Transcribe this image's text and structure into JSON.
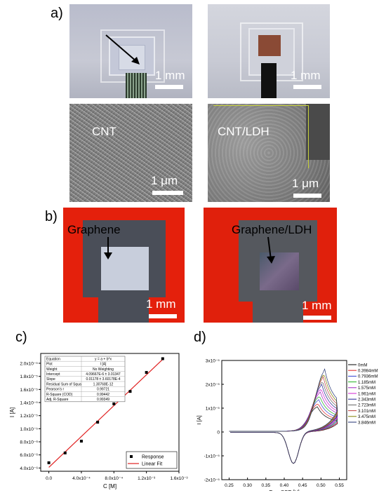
{
  "panel_labels": {
    "a": "a)",
    "b": "b)",
    "c": "c)",
    "d": "d)"
  },
  "panel_a": {
    "scale_1mm": "1 mm",
    "scale_1um": "1 μm",
    "sem_left_label": "CNT",
    "sem_right_label": "CNT/LDH"
  },
  "panel_b": {
    "left_label": "Graphene",
    "right_label": "Graphene/LDH",
    "scale_1mm": "1 mm"
  },
  "chart_data": [
    {
      "type": "scatter",
      "title": "",
      "xlabel": "C [M]",
      "ylabel": "I [A]",
      "xlim": [
        -0.0001,
        0.0016
      ],
      "ylim": [
        3.5e-06,
        2.2e-06
      ],
      "x_ticks": [
        "0.0",
        "4.0x10⁻⁴",
        "8.0x10⁻⁴",
        "1.2x10⁻³",
        "1.6x10⁻³"
      ],
      "y_ticks": [
        "4.0x10⁻⁶",
        "6.0x10⁻⁶",
        "8.0x10⁻⁶",
        "1.0x10⁻⁵",
        "1.2x10⁻⁵",
        "1.4x10⁻⁵",
        "1.6x10⁻⁵",
        "1.8x10⁻⁵",
        "2.0x10⁻⁵",
        "2.2x10⁻⁵"
      ],
      "series": [
        {
          "name": "Response",
          "x": [
            0.0,
            0.0002,
            0.0004,
            0.0006,
            0.0008,
            0.001,
            0.0012,
            0.0014
          ],
          "y": [
            4.8e-06,
            6.3e-06,
            8.1e-06,
            1.1e-05,
            1.38e-05,
            1.57e-05,
            1.86e-05,
            2.07e-05
          ]
        },
        {
          "name": "Linear Fit",
          "intercept": 4.1e-06,
          "slope": 0.01178
        }
      ],
      "legend": "bottom-right",
      "fit_table": [
        [
          "Equation",
          "y = a + b*x"
        ],
        [
          "Plot",
          "I [A]"
        ],
        [
          "Weight",
          "No Weighting"
        ],
        [
          "Intercept",
          "4.09667E-6 ± 3.01347"
        ],
        [
          "Slope",
          "0.01178 ± 3.60178E-4"
        ],
        [
          "Residual Sum of Squa",
          "1.30768E-12"
        ],
        [
          "Pearson's r",
          "0.99721"
        ],
        [
          "R-Square (COD)",
          "0.99442"
        ],
        [
          "Adj. R-Square",
          "0.99349"
        ]
      ]
    },
    {
      "type": "line",
      "title": "",
      "xlabel": "E vs SCE [V]",
      "ylabel": "I [A]",
      "xlim": [
        0.23,
        0.57
      ],
      "ylim": [
        -2e-05,
        3e-05
      ],
      "x_ticks": [
        "0.25",
        "0.30",
        "0.35",
        "0.40",
        "0.45",
        "0.50",
        "0.55"
      ],
      "y_ticks": [
        "3x10⁻⁵",
        "2x10⁻⁵",
        "1x10⁻⁵",
        "0",
        "-1x10⁻⁵",
        "-2x10⁻⁵"
      ],
      "series_names": [
        "0mM",
        "0.3984mM",
        "0.7936mM",
        "1.185mM",
        "1.575mM",
        "1.961mM",
        "2.343mM",
        "2.723mM",
        "3.101mM",
        "3.475mM",
        "3.846mM"
      ],
      "series_colors": [
        "#000000",
        "#e02020",
        "#3040d0",
        "#20b020",
        "#a020c0",
        "#d020d0",
        "#202090",
        "#606060",
        "#c04040",
        "#808000",
        "#203070"
      ],
      "peak_currents": [
        1.06e-05,
        1.2e-05,
        1.36e-05,
        1.52e-05,
        1.68e-05,
        1.84e-05,
        2e-05,
        2.16e-05,
        2.32e-05,
        2.48e-05,
        2.64e-05
      ],
      "peak_potentials": [
        0.49,
        0.492,
        0.494,
        0.496,
        0.498,
        0.5,
        0.502,
        0.504,
        0.506,
        0.508,
        0.51
      ],
      "cathodic_peak": {
        "E": 0.425,
        "I": -1.3e-05
      },
      "legend": "top-right"
    }
  ],
  "colors": {
    "fit_line": "#e02020",
    "points": "#000000"
  }
}
